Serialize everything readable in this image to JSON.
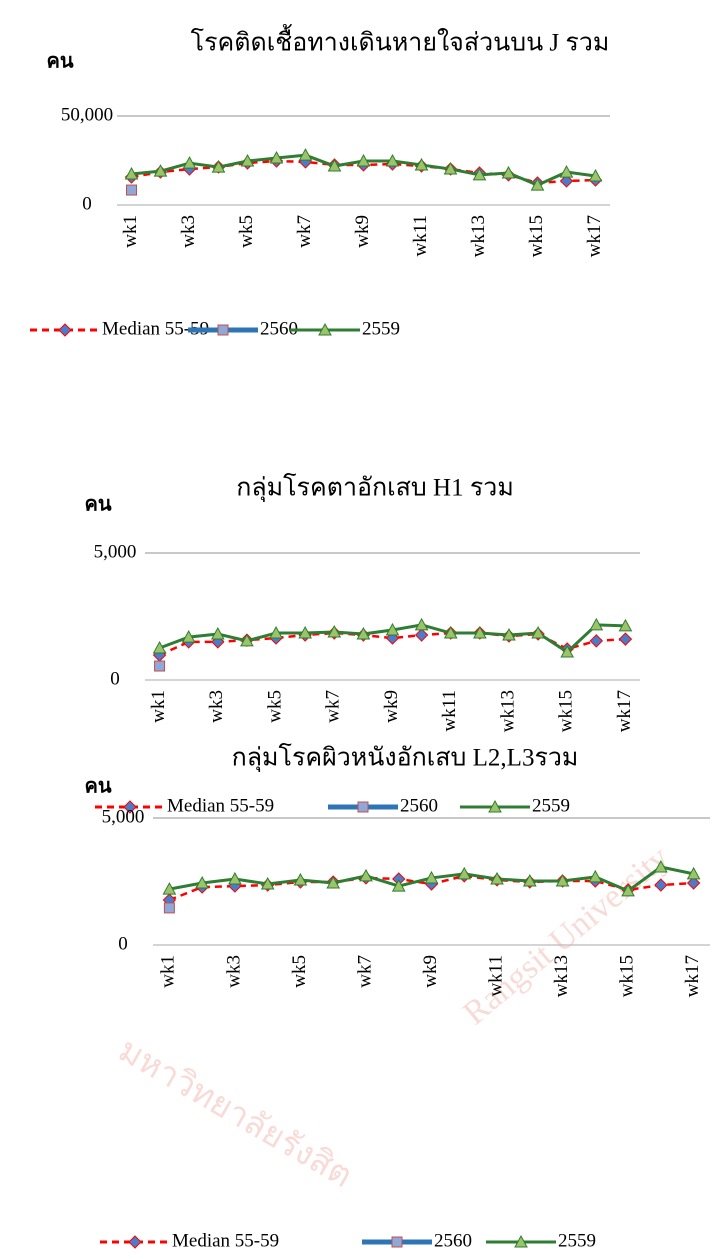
{
  "chart_data": [
    {
      "type": "line",
      "title": "โรคติดเชื้อทางเดินหายใจส่วนบน J รวม",
      "y_label": "คน",
      "categories": [
        "wk1",
        null,
        "wk3",
        null,
        "wk5",
        null,
        "wk7",
        null,
        "wk9",
        null,
        "wk11",
        null,
        "wk13",
        null,
        "wk15",
        null,
        "wk17"
      ],
      "ylim": [
        0,
        50000
      ],
      "yticks": [
        0,
        {
          "value": 50000,
          "label": "50,000"
        }
      ],
      "grid": true,
      "legend": "bottom",
      "series": [
        {
          "name": "Median 55-59",
          "color": "#ff0000",
          "marker": "diamond",
          "marker_color": "#4a7cc9",
          "dashed": true,
          "values": [
            15700,
            18500,
            20200,
            21300,
            23600,
            24700,
            24200,
            22500,
            22500,
            23000,
            21900,
            20200,
            18000,
            16900,
            12400,
            13500,
            14000
          ]
        },
        {
          "name": "2560",
          "color": "#2e75b6",
          "marker": "square",
          "marker_color": "#8fa8d8",
          "dashed": false,
          "values": [
            8400,
            null,
            null,
            null,
            null,
            null,
            null,
            null,
            null,
            null,
            null,
            null,
            null,
            null,
            null,
            null,
            null
          ]
        },
        {
          "name": "2559",
          "color": "#2e7d32",
          "marker": "triangle",
          "marker_color": "#9bc46a",
          "dashed": false,
          "values": [
            17400,
            19000,
            23500,
            21300,
            24700,
            26400,
            28000,
            21900,
            24700,
            24700,
            22500,
            20200,
            16900,
            18000,
            11200,
            18500,
            16300
          ]
        }
      ]
    },
    {
      "type": "line",
      "title": "กลุ่มโรคตาอักเสบ H1 รวม",
      "y_label": "คน",
      "categories": [
        "wk1",
        null,
        "wk3",
        null,
        "wk5",
        null,
        "wk7",
        null,
        "wk9",
        null,
        "wk11",
        null,
        "wk13",
        null,
        "wk15",
        null,
        "wk17"
      ],
      "ylim": [
        0,
        5000
      ],
      "yticks": [
        0,
        {
          "value": 5000,
          "label": "5,000"
        }
      ],
      "grid": true,
      "legend": "bottom",
      "series": [
        {
          "name": "Median 55-59",
          "color": "#ff0000",
          "marker": "diamond",
          "marker_color": "#4a7cc9",
          "dashed": true,
          "values": [
            980,
            1500,
            1500,
            1570,
            1650,
            1770,
            1850,
            1770,
            1650,
            1770,
            1850,
            1850,
            1730,
            1810,
            1220,
            1540,
            1610
          ]
        },
        {
          "name": "2560",
          "color": "#2e75b6",
          "marker": "square",
          "marker_color": "#8fa8d8",
          "dashed": false,
          "values": [
            550,
            null,
            null,
            null,
            null,
            null,
            null,
            null,
            null,
            null,
            null,
            null,
            null,
            null,
            null,
            null,
            null
          ]
        },
        {
          "name": "2559",
          "color": "#2e7d32",
          "marker": "triangle",
          "marker_color": "#9bc46a",
          "dashed": false,
          "values": [
            1260,
            1690,
            1810,
            1540,
            1850,
            1850,
            1890,
            1810,
            1970,
            2170,
            1850,
            1850,
            1770,
            1850,
            1100,
            2170,
            2130
          ]
        }
      ]
    },
    {
      "type": "line",
      "title": "กลุ่มโรคผิวหนังอักเสบ L2,L3รวม",
      "y_label": "คน",
      "categories": [
        "wk1",
        null,
        "wk3",
        null,
        "wk5",
        null,
        "wk7",
        null,
        "wk9",
        null,
        "wk11",
        null,
        "wk13",
        null,
        "wk15",
        null,
        "wk17"
      ],
      "ylim": [
        0,
        5000
      ],
      "yticks": [
        0,
        {
          "value": 5000,
          "label": "5,000"
        }
      ],
      "grid": true,
      "legend": "bottom",
      "series": [
        {
          "name": "Median 55-59",
          "color": "#ff0000",
          "marker": "diamond",
          "marker_color": "#4a7cc9",
          "dashed": true,
          "values": [
            1770,
            2280,
            2320,
            2360,
            2480,
            2480,
            2640,
            2600,
            2400,
            2720,
            2560,
            2480,
            2520,
            2520,
            2170,
            2360,
            2440
          ]
        },
        {
          "name": "2560",
          "color": "#2e75b6",
          "marker": "square",
          "marker_color": "#8fa8d8",
          "dashed": false,
          "values": [
            1460,
            null,
            null,
            null,
            null,
            null,
            null,
            null,
            null,
            null,
            null,
            null,
            null,
            null,
            null,
            null,
            null
          ]
        },
        {
          "name": "2559",
          "color": "#2e7d32",
          "marker": "triangle",
          "marker_color": "#9bc46a",
          "dashed": false,
          "values": [
            2200,
            2440,
            2600,
            2400,
            2560,
            2440,
            2720,
            2320,
            2640,
            2800,
            2600,
            2520,
            2520,
            2680,
            2130,
            3070,
            2800
          ]
        }
      ]
    }
  ],
  "watermark": [
    "มหาวิทยาลัยรังสิต",
    "Rangsit University"
  ]
}
